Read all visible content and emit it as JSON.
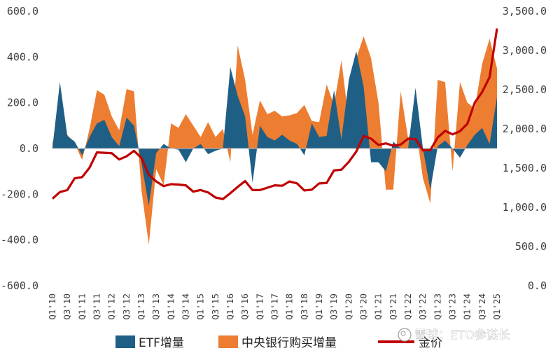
{
  "chart_data": {
    "type": "area+line",
    "title": "",
    "categories": [
      "Q1'10",
      "Q2'10",
      "Q3'10",
      "Q4'10",
      "Q1'11",
      "Q2'11",
      "Q3'11",
      "Q4'11",
      "Q1'12",
      "Q2'12",
      "Q3'12",
      "Q4'12",
      "Q1'13",
      "Q2'13",
      "Q3'13",
      "Q4'13",
      "Q1'14",
      "Q2'14",
      "Q3'14",
      "Q4'14",
      "Q1'15",
      "Q2'15",
      "Q3'15",
      "Q4'15",
      "Q1'16",
      "Q2'16",
      "Q3'16",
      "Q4'16",
      "Q1'17",
      "Q2'17",
      "Q3'17",
      "Q4'17",
      "Q1'18",
      "Q2'18",
      "Q3'18",
      "Q4'18",
      "Q1'19",
      "Q2'19",
      "Q3'19",
      "Q4'19",
      "Q1'20",
      "Q2'20",
      "Q3'20",
      "Q4'20",
      "Q1'21",
      "Q2'21",
      "Q3'21",
      "Q4'21",
      "Q1'22",
      "Q2'22",
      "Q3'22",
      "Q4'22",
      "Q1'23",
      "Q2'23",
      "Q3'23",
      "Q4'23",
      "Q1'24",
      "Q2'24",
      "Q3'24",
      "Q4'24",
      "Q1'25"
    ],
    "x_tick_labels": [
      "Q1'10",
      "Q3'10",
      "Q1'11",
      "Q3'11",
      "Q1'12",
      "Q3'12",
      "Q1'13",
      "Q3'13",
      "Q1'14",
      "Q3'14",
      "Q1'15",
      "Q3'15",
      "Q1'16",
      "Q3'16",
      "Q1'17",
      "Q3'17",
      "Q1'18",
      "Q3'18",
      "Q1'19",
      "Q3'19",
      "Q1'20",
      "Q3'20",
      "Q1'21",
      "Q3'21",
      "Q1'22",
      "Q3'22",
      "Q1'23",
      "Q3'23",
      "Q1'24",
      "Q3'24",
      "Q1'25"
    ],
    "series": [
      {
        "name": "ETF增量",
        "axis": "left",
        "kind": "area",
        "color": "#1f5f86",
        "values": [
          5,
          290,
          55,
          30,
          -30,
          50,
          110,
          125,
          50,
          10,
          135,
          100,
          -60,
          -250,
          -20,
          20,
          0,
          -5,
          -60,
          0,
          20,
          -25,
          -10,
          0,
          355,
          230,
          140,
          -150,
          100,
          50,
          35,
          60,
          35,
          20,
          -30,
          110,
          50,
          55,
          255,
          40,
          300,
          425,
          270,
          -60,
          -60,
          -100,
          30,
          0,
          0,
          265,
          0,
          -180,
          10,
          35,
          0,
          -40,
          15,
          60,
          90,
          20,
          225
        ]
      },
      {
        "name": "中央银行购买增量",
        "axis": "left",
        "kind": "area",
        "color": "#ed7d31",
        "values": [
          30,
          40,
          60,
          20,
          -50,
          85,
          255,
          235,
          140,
          80,
          260,
          250,
          -180,
          -420,
          -90,
          -160,
          110,
          90,
          150,
          100,
          50,
          115,
          50,
          85,
          -60,
          450,
          300,
          60,
          210,
          150,
          165,
          140,
          145,
          155,
          190,
          120,
          115,
          280,
          190,
          385,
          120,
          395,
          490,
          395,
          200,
          -180,
          -180,
          250,
          45,
          100,
          -130,
          -240,
          300,
          290,
          -100,
          290,
          200,
          175,
          370,
          480,
          350
        ]
      },
      {
        "name": "金价",
        "axis": "right",
        "kind": "line",
        "color": "#c00000",
        "values": [
          1110,
          1195,
          1220,
          1370,
          1385,
          1505,
          1700,
          1695,
          1690,
          1610,
          1650,
          1720,
          1630,
          1415,
          1330,
          1270,
          1295,
          1290,
          1280,
          1200,
          1220,
          1190,
          1125,
          1105,
          1180,
          1260,
          1335,
          1220,
          1220,
          1250,
          1280,
          1275,
          1330,
          1305,
          1215,
          1225,
          1305,
          1310,
          1470,
          1480,
          1580,
          1710,
          1910,
          1875,
          1795,
          1815,
          1785,
          1800,
          1875,
          1870,
          1725,
          1730,
          1890,
          1975,
          1930,
          1970,
          2065,
          2335,
          2470,
          2660,
          3280
        ]
      }
    ],
    "y_left": {
      "min": -600,
      "max": 600,
      "ticks": [
        "600.0",
        "400.0",
        "200.0",
        "0.0",
        "-200.0",
        "-400.0",
        "-600.0"
      ]
    },
    "y_right": {
      "min": 0,
      "max": 3500,
      "ticks": [
        "3,500.0",
        "3,000.0",
        "2,500.0",
        "2,000.0",
        "1,500.0",
        "1,000.0",
        "500.0",
        "0.0"
      ]
    },
    "legend": {
      "position": "bottom",
      "items": [
        "ETF增量",
        "中央银行购买增量",
        "金价"
      ]
    },
    "grid": false
  },
  "watermark": {
    "text": "雪球：ETO参谋长"
  }
}
